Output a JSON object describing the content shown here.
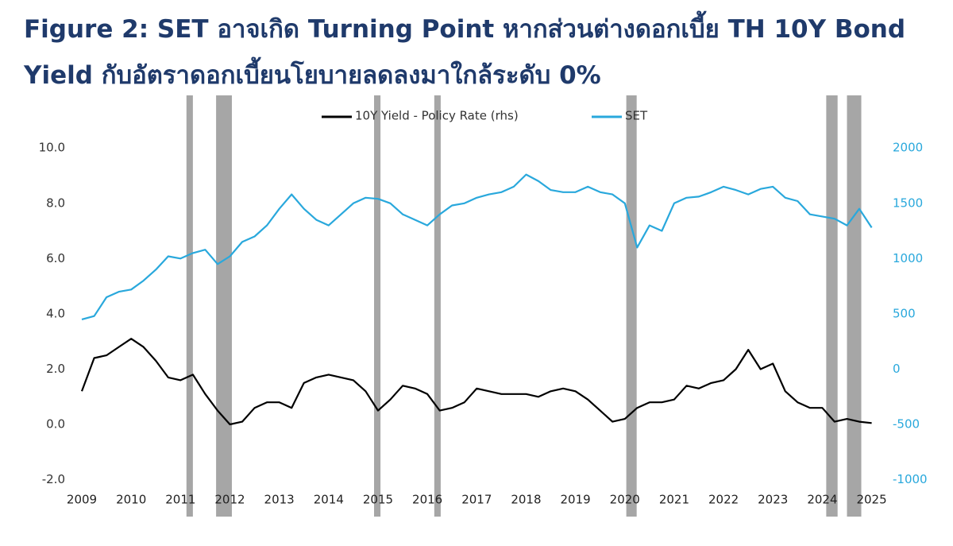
{
  "chart_data": {
    "type": "line",
    "title": "Figure 2: SET อาจเกิด Turning Point หากส่วนต่างดอกเบี้ย TH 10Y Bond Yield กับอัตราดอกเบี้ยนโยบายลดลงมาใกล้ระดับ 0%",
    "x": [
      2009,
      2009.25,
      2009.5,
      2009.75,
      2010,
      2010.25,
      2010.5,
      2010.75,
      2011,
      2011.25,
      2011.5,
      2011.75,
      2012,
      2012.25,
      2012.5,
      2012.75,
      2013,
      2013.25,
      2013.5,
      2013.75,
      2014,
      2014.25,
      2014.5,
      2014.75,
      2015,
      2015.25,
      2015.5,
      2015.75,
      2016,
      2016.25,
      2016.5,
      2016.75,
      2017,
      2017.25,
      2017.5,
      2017.75,
      2018,
      2018.25,
      2018.5,
      2018.75,
      2019,
      2019.25,
      2019.5,
      2019.75,
      2020,
      2020.25,
      2020.5,
      2020.75,
      2021,
      2021.25,
      2021.5,
      2021.75,
      2022,
      2022.25,
      2022.5,
      2022.75,
      2023,
      2023.25,
      2023.5,
      2023.75,
      2024,
      2024.25,
      2024.5,
      2024.75,
      2025
    ],
    "series": [
      {
        "name": "10Y Yield - Policy Rate (rhs)",
        "color": "#000000",
        "values": [
          1.2,
          2.4,
          2.5,
          2.8,
          3.1,
          2.8,
          2.3,
          1.7,
          1.6,
          1.8,
          1.1,
          0.5,
          0.0,
          0.1,
          0.6,
          0.8,
          0.8,
          0.6,
          1.5,
          1.7,
          1.8,
          1.7,
          1.6,
          1.2,
          0.5,
          0.9,
          1.4,
          1.3,
          1.1,
          0.5,
          0.6,
          0.8,
          1.3,
          1.2,
          1.1,
          1.1,
          1.1,
          1.0,
          1.2,
          1.3,
          1.2,
          0.9,
          0.5,
          0.1,
          0.2,
          0.6,
          0.8,
          0.8,
          0.9,
          1.4,
          1.3,
          1.5,
          1.6,
          2.0,
          2.7,
          2.0,
          2.2,
          1.2,
          0.8,
          0.6,
          0.6,
          0.1,
          0.2,
          0.1,
          0.05
        ]
      },
      {
        "name": "SET",
        "color": "#29a8dc",
        "axis": "y2",
        "values": [
          450,
          480,
          650,
          700,
          720,
          800,
          900,
          1020,
          1000,
          1050,
          1080,
          950,
          1020,
          1150,
          1200,
          1300,
          1450,
          1580,
          1450,
          1350,
          1300,
          1400,
          1500,
          1550,
          1540,
          1500,
          1400,
          1350,
          1300,
          1400,
          1480,
          1500,
          1550,
          1580,
          1600,
          1650,
          1760,
          1700,
          1620,
          1600,
          1600,
          1650,
          1600,
          1580,
          1500,
          1100,
          1300,
          1250,
          1500,
          1550,
          1560,
          1600,
          1650,
          1620,
          1580,
          1630,
          1650,
          1550,
          1520,
          1400,
          1380,
          1360,
          1300,
          1450,
          1280
        ]
      }
    ],
    "shaded_periods": [
      [
        2011.12,
        2011.25
      ],
      [
        2011.72,
        2012.04
      ],
      [
        2014.92,
        2015.05
      ],
      [
        2016.14,
        2016.27
      ],
      [
        2020.03,
        2020.24
      ],
      [
        2024.08,
        2024.31
      ],
      [
        2024.5,
        2024.79
      ]
    ],
    "shade_color": "#a6a6a6",
    "xlim": [
      2008.9,
      2025.2
    ],
    "xticks": [
      2009,
      2010,
      2011,
      2012,
      2013,
      2014,
      2015,
      2016,
      2017,
      2018,
      2019,
      2020,
      2021,
      2022,
      2023,
      2024,
      2025
    ],
    "ylim": [
      -2.5,
      11.5
    ],
    "yticks": [
      {
        "value": -2,
        "label": "-2.0"
      },
      {
        "value": 0,
        "label": "0.0"
      },
      {
        "value": 2,
        "label": "2.0"
      },
      {
        "value": 4,
        "label": "4.0"
      },
      {
        "value": 6,
        "label": "6.0"
      },
      {
        "value": 8,
        "label": "8.0"
      },
      {
        "value": 10,
        "label": "10.0"
      }
    ],
    "y2lim": [
      -1125,
      2375
    ],
    "y2ticks": [
      -1000,
      -500,
      0,
      500,
      1000,
      1500,
      2000
    ],
    "y2_color": "#29a8dc",
    "legend": "top"
  }
}
